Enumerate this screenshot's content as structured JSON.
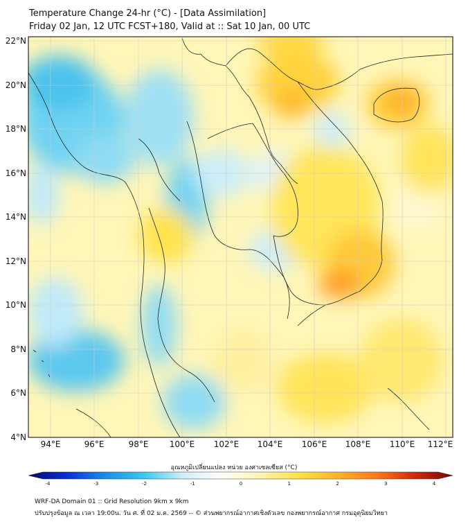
{
  "title": {
    "line1": "Temperature Change 24-hr (°C) - [Data Assimilation]",
    "line2": "Friday 02 Jan, 12 UTC FCST+180, Valid at :: Sat 10 Jan, 00 UTC"
  },
  "axes": {
    "lat_labels": [
      "22°N",
      "20°N",
      "18°N",
      "16°N",
      "14°N",
      "12°N",
      "10°N",
      "8°N",
      "6°N",
      "4°N"
    ],
    "lon_labels": [
      "94°E",
      "96°E",
      "98°E",
      "100°E",
      "102°E",
      "104°E",
      "106°E",
      "108°E",
      "110°E",
      "112°E"
    ],
    "lat_range": [
      4,
      22
    ],
    "lon_range": [
      93,
      112.3
    ]
  },
  "colorbar": {
    "label": "อุณหภูมิเปลี่ยนแปลง หน่วย องศาเซลเซียส (°C)",
    "ticks": [
      "-4",
      "-3",
      "-2",
      "-1",
      "0",
      "1",
      "2",
      "3",
      "4"
    ],
    "range": [
      -4,
      4
    ],
    "colors": [
      "#08086b",
      "#0a2fd8",
      "#1a8ee8",
      "#39c9ee",
      "#cfeffa",
      "#ffffff",
      "#fff5b0",
      "#ffe14a",
      "#ffb52a",
      "#ff7a1c",
      "#d12a0c",
      "#6e0a04"
    ]
  },
  "footer": {
    "line1": "WRF-DA Domain 01 :: Grid Resolution 9km x 9km",
    "line2": "ปรับปรุงข้อมูล ณ เวลา 19:00น. วัน ศ. ที่ 02 ม.ค. 2569 -- © ส่วนพยากรณ์อากาศเชิงตัวเลข กองพยากรณ์อากาศ กรมอุตุนิยมวิทยา"
  }
}
